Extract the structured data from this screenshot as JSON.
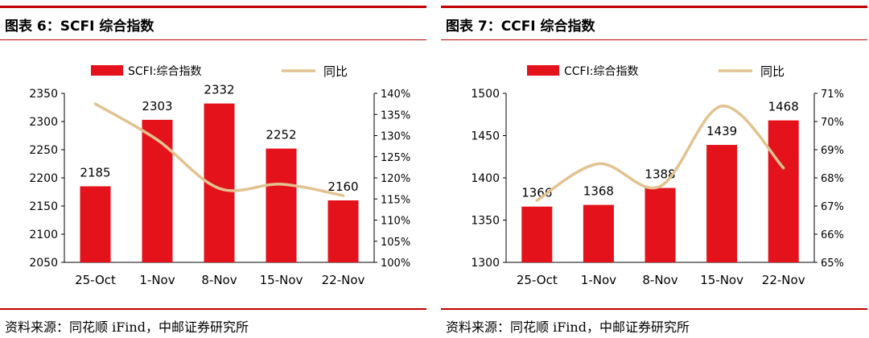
{
  "figures": [
    {
      "title": "图表 6：SCFI 综合指数",
      "source": "资料来源：同花顺 iFind，中邮证券研究所"
    },
    {
      "title": "图表 7：CCFI 综合指数",
      "source": "资料来源：同花顺 iFind，中邮证券研究所"
    }
  ],
  "colors": {
    "bar": "#e3121b",
    "line": "#e2c290",
    "rule": "#c00000"
  },
  "chart_data": [
    {
      "type": "bar",
      "categories": [
        "25-Oct",
        "1-Nov",
        "8-Nov",
        "15-Nov",
        "22-Nov"
      ],
      "series": [
        {
          "name": "SCFI:综合指数",
          "type": "bar",
          "axis": "left",
          "values": [
            2185,
            2303,
            2332,
            2252,
            2160
          ],
          "labels": [
            "2185",
            "2303",
            "2332",
            "2252",
            "2160"
          ]
        },
        {
          "name": "同比",
          "type": "line",
          "axis": "right",
          "smooth": true,
          "values": [
            137.5,
            129.0,
            117.5,
            118.5,
            115.8
          ]
        }
      ],
      "ylim": [
        2050,
        2350
      ],
      "yticks": [
        "2050",
        "2100",
        "2150",
        "2200",
        "2250",
        "2300",
        "2350"
      ],
      "y2lim": [
        100,
        140
      ],
      "y2ticks": [
        "100%",
        "105%",
        "110%",
        "115%",
        "120%",
        "125%",
        "130%",
        "135%",
        "140%"
      ],
      "legend": "top"
    },
    {
      "type": "bar",
      "categories": [
        "25-Oct",
        "1-Nov",
        "8-Nov",
        "15-Nov",
        "22-Nov"
      ],
      "series": [
        {
          "name": "CCFI:综合指数",
          "type": "bar",
          "axis": "left",
          "values": [
            1366,
            1368,
            1388,
            1439,
            1468
          ],
          "labels": [
            "1366",
            "1368",
            "1388",
            "1439",
            "1468"
          ]
        },
        {
          "name": "同比",
          "type": "line",
          "axis": "right",
          "smooth": true,
          "values": [
            67.2,
            68.5,
            67.7,
            70.55,
            68.35
          ]
        }
      ],
      "ylim": [
        1300,
        1500
      ],
      "yticks": [
        "1300",
        "1350",
        "1400",
        "1450",
        "1500"
      ],
      "y2lim": [
        65,
        71
      ],
      "y2ticks": [
        "65%",
        "66%",
        "67%",
        "68%",
        "69%",
        "70%",
        "71%"
      ],
      "legend": "top"
    }
  ]
}
